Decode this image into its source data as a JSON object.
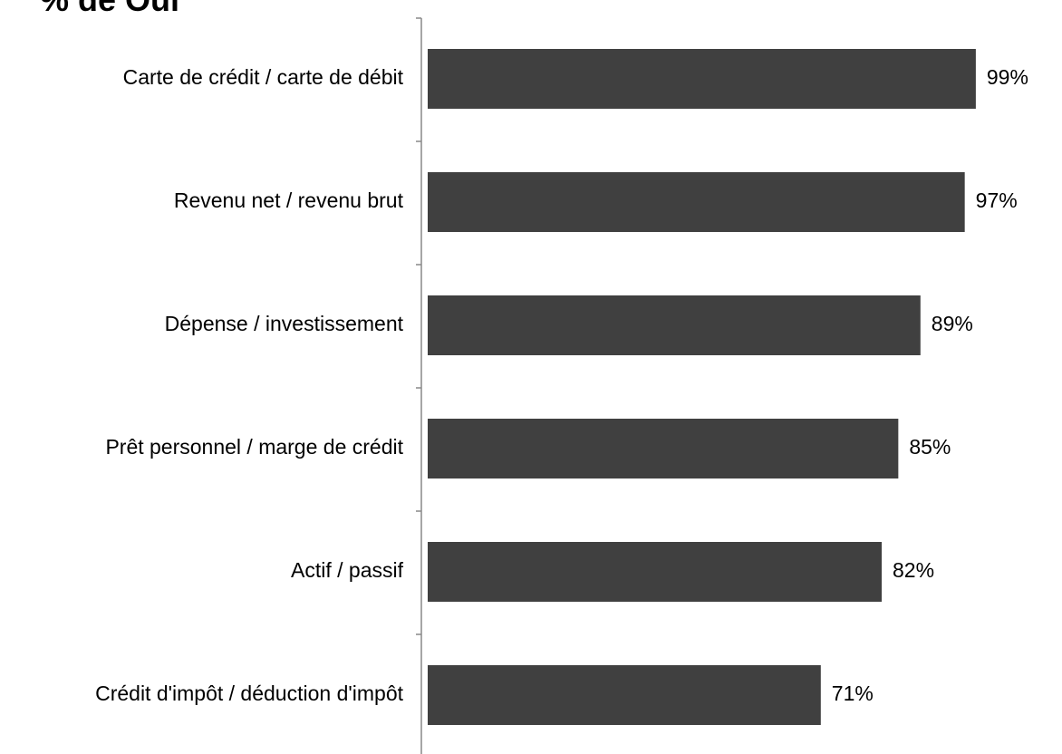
{
  "chart_data": {
    "type": "bar",
    "orientation": "horizontal",
    "title": "% de Oui",
    "categories": [
      "Carte de crédit / carte de débit",
      "Revenu net / revenu brut",
      "Dépense / investissement",
      "Prêt personnel / marge de crédit",
      "Actif / passif",
      "Crédit d'impôt / déduction d'impôt"
    ],
    "values": [
      99,
      97,
      89,
      85,
      82,
      71
    ],
    "value_labels": [
      "99%",
      "97%",
      "89%",
      "85%",
      "82%",
      "71%"
    ],
    "color": "#404040",
    "xlim": [
      0,
      100
    ]
  }
}
